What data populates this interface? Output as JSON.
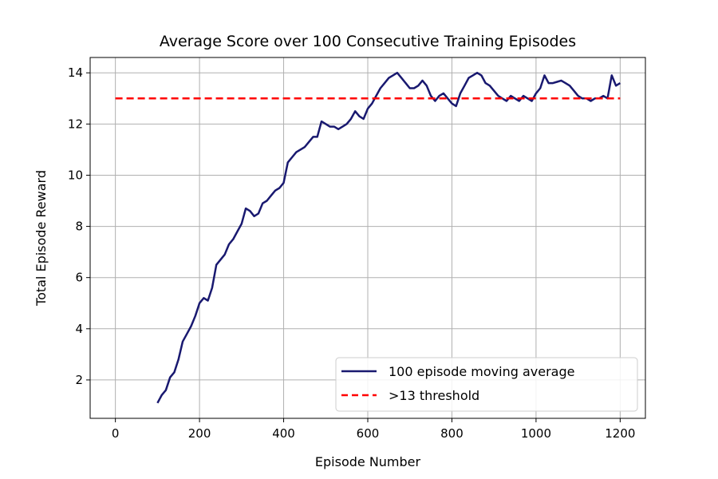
{
  "chart_data": {
    "type": "line",
    "title": "Average Score over 100 Consecutive Training Episodes",
    "xlabel": "Episode Number",
    "ylabel": "Total Episode Reward",
    "xlim": [
      -60,
      1260
    ],
    "ylim": [
      0.5,
      14.6
    ],
    "xticks": [
      0,
      200,
      400,
      600,
      800,
      1000,
      1200
    ],
    "yticks": [
      2,
      4,
      6,
      8,
      10,
      12,
      14
    ],
    "grid": true,
    "legend_position": "lower-right",
    "series": [
      {
        "name": "100 episode moving average",
        "color": "#191970",
        "style": "solid",
        "x": [
          100,
          110,
          120,
          130,
          140,
          150,
          160,
          170,
          180,
          190,
          200,
          210,
          220,
          230,
          240,
          250,
          260,
          270,
          280,
          290,
          300,
          310,
          320,
          330,
          340,
          350,
          360,
          370,
          380,
          390,
          400,
          410,
          420,
          430,
          440,
          450,
          460,
          470,
          480,
          490,
          500,
          510,
          520,
          530,
          540,
          550,
          560,
          570,
          580,
          590,
          600,
          610,
          620,
          630,
          640,
          650,
          660,
          670,
          680,
          690,
          700,
          710,
          720,
          730,
          740,
          750,
          760,
          770,
          780,
          790,
          800,
          810,
          820,
          830,
          840,
          850,
          860,
          870,
          880,
          890,
          900,
          910,
          920,
          930,
          940,
          950,
          960,
          970,
          980,
          990,
          1000,
          1010,
          1020,
          1030,
          1040,
          1050,
          1060,
          1070,
          1080,
          1090,
          1100,
          1110,
          1120,
          1130,
          1140,
          1150,
          1160,
          1170,
          1180,
          1190,
          1200
        ],
        "values": [
          1.1,
          1.4,
          1.6,
          2.1,
          2.3,
          2.8,
          3.5,
          3.8,
          4.1,
          4.5,
          5.0,
          5.2,
          5.1,
          5.6,
          6.5,
          6.7,
          6.9,
          7.3,
          7.5,
          7.8,
          8.1,
          8.7,
          8.6,
          8.4,
          8.5,
          8.9,
          9.0,
          9.2,
          9.4,
          9.5,
          9.7,
          10.5,
          10.7,
          10.9,
          11.0,
          11.1,
          11.3,
          11.5,
          11.5,
          12.1,
          12.0,
          11.9,
          11.9,
          11.8,
          11.9,
          12.0,
          12.2,
          12.5,
          12.3,
          12.2,
          12.6,
          12.8,
          13.1,
          13.4,
          13.6,
          13.8,
          13.9,
          14.0,
          13.8,
          13.6,
          13.4,
          13.4,
          13.5,
          13.7,
          13.5,
          13.1,
          12.9,
          13.1,
          13.2,
          13.0,
          12.8,
          12.7,
          13.2,
          13.5,
          13.8,
          13.9,
          14.0,
          13.9,
          13.6,
          13.5,
          13.3,
          13.1,
          13.0,
          12.9,
          13.1,
          13.0,
          12.9,
          13.1,
          13.0,
          12.9,
          13.2,
          13.4,
          13.9,
          13.6,
          13.6,
          13.65,
          13.7,
          13.6,
          13.5,
          13.3,
          13.1,
          13.0,
          13.0,
          12.9,
          13.0,
          13.0,
          13.1,
          13.0,
          13.9,
          13.5,
          13.6
        ]
      },
      {
        "name": ">13 threshold",
        "color": "#ff0000",
        "style": "dashed",
        "x": [
          0,
          1200
        ],
        "values": [
          13,
          13
        ]
      }
    ]
  }
}
